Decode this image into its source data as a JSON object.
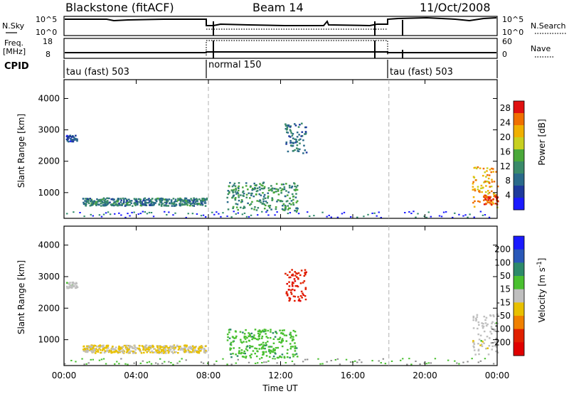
{
  "header": {
    "title": "Blackstone (fitACF)",
    "beam": "Beam 14",
    "date": "11/Oct/2008"
  },
  "status_panel": {
    "nsky_label": "N.Sky",
    "nsky_ticks": [
      "10^5",
      "10^0"
    ],
    "nsearch_label": "N.Search",
    "nsearch_ticks": [
      "10^5",
      "10^0"
    ],
    "freq_label": "Freq.",
    "freq_unit": "[MHz]",
    "freq_ticks": [
      "18",
      "8"
    ],
    "nave_label": "Nave",
    "nave_ticks": [
      "60",
      "0"
    ],
    "cpid_label": "CPID",
    "cpid_segments": [
      {
        "label": "tau (fast) 503",
        "start_hour": 0,
        "end_hour": 8
      },
      {
        "label": "normal 150",
        "start_hour": 8,
        "end_hour": 18
      },
      {
        "label": "tau (fast) 503",
        "start_hour": 18,
        "end_hour": 24
      }
    ]
  },
  "chart_data": [
    {
      "type": "heatmap",
      "name": "power",
      "xlabel": "Time UT",
      "ylabel": "Slant Range [km]",
      "xlim": [
        0,
        24
      ],
      "ylim": [
        180,
        4600
      ],
      "xticks": [
        "00:00",
        "04:00",
        "08:00",
        "12:00",
        "16:00",
        "20:00",
        "00:00"
      ],
      "yticks": [
        1000,
        2000,
        3000,
        4000
      ],
      "colorbar_label": "Power [dB]",
      "colorbar_ticks": [
        4,
        8,
        12,
        16,
        20,
        24,
        28
      ],
      "colorbar_range": [
        0,
        30
      ],
      "mode_change_hours": [
        8,
        18
      ],
      "features": [
        {
          "desc": "echo",
          "t_start": 0.1,
          "t_end": 0.7,
          "r_start": 2600,
          "r_end": 2800,
          "value": 6
        },
        {
          "desc": "echo",
          "t_start": 1.0,
          "t_end": 7.9,
          "r_start": 550,
          "r_end": 800,
          "value": 10
        },
        {
          "desc": "echo",
          "t_start": 9.0,
          "t_end": 12.9,
          "r_start": 400,
          "r_end": 1300,
          "value": 12
        },
        {
          "desc": "echo",
          "t_start": 12.2,
          "t_end": 13.4,
          "r_start": 2200,
          "r_end": 3200,
          "value": 8
        },
        {
          "desc": "echo",
          "t_start": 22.6,
          "t_end": 24,
          "r_start": 500,
          "r_end": 1800,
          "value": 22
        },
        {
          "desc": "echo",
          "t_start": 23.2,
          "t_end": 24,
          "r_start": 600,
          "r_end": 900,
          "value": 28
        }
      ]
    },
    {
      "type": "heatmap",
      "name": "velocity",
      "xlabel": "Time UT",
      "ylabel": "Slant Range [km]",
      "xlim": [
        0,
        24
      ],
      "ylim": [
        180,
        4600
      ],
      "xticks": [
        "00:00",
        "04:00",
        "08:00",
        "12:00",
        "16:00",
        "20:00",
        "00:00"
      ],
      "yticks": [
        1000,
        2000,
        3000,
        4000
      ],
      "colorbar_label": "Velocity [m s^-1]",
      "colorbar_ticks": [
        200,
        100,
        50,
        15,
        -15,
        -50,
        -100,
        -200
      ],
      "colorbar_range": [
        -250,
        250
      ],
      "mode_change_hours": [
        8,
        18
      ],
      "features": [
        {
          "desc": "echo",
          "t_start": 0.1,
          "t_end": 0.7,
          "r_start": 2600,
          "r_end": 2800,
          "value": 0
        },
        {
          "desc": "echo",
          "t_start": 1.0,
          "t_end": 7.9,
          "r_start": 550,
          "r_end": 800,
          "value": -30
        },
        {
          "desc": "echo",
          "t_start": 9.0,
          "t_end": 12.9,
          "r_start": 400,
          "r_end": 1300,
          "value": 60
        },
        {
          "desc": "echo",
          "t_start": 12.2,
          "t_end": 13.4,
          "r_start": 2200,
          "r_end": 3200,
          "value": -180
        },
        {
          "desc": "echo",
          "t_start": 22.6,
          "t_end": 24,
          "r_start": 500,
          "r_end": 1800,
          "value": 0
        }
      ]
    }
  ],
  "colors": {
    "power_scale": [
      "#1a1aff",
      "#1e3a9c",
      "#2a6a8a",
      "#3a8a6a",
      "#4aa83a",
      "#c8d020",
      "#f0b000",
      "#f07000",
      "#e01010"
    ],
    "velocity_scale": [
      "#1a1aff",
      "#2a58b8",
      "#2d8a6a",
      "#4ac030",
      "#bfbfbf",
      "#e8c000",
      "#f08000",
      "#e02000",
      "#e00000"
    ],
    "ground_scatter": "#8c8c8c"
  }
}
